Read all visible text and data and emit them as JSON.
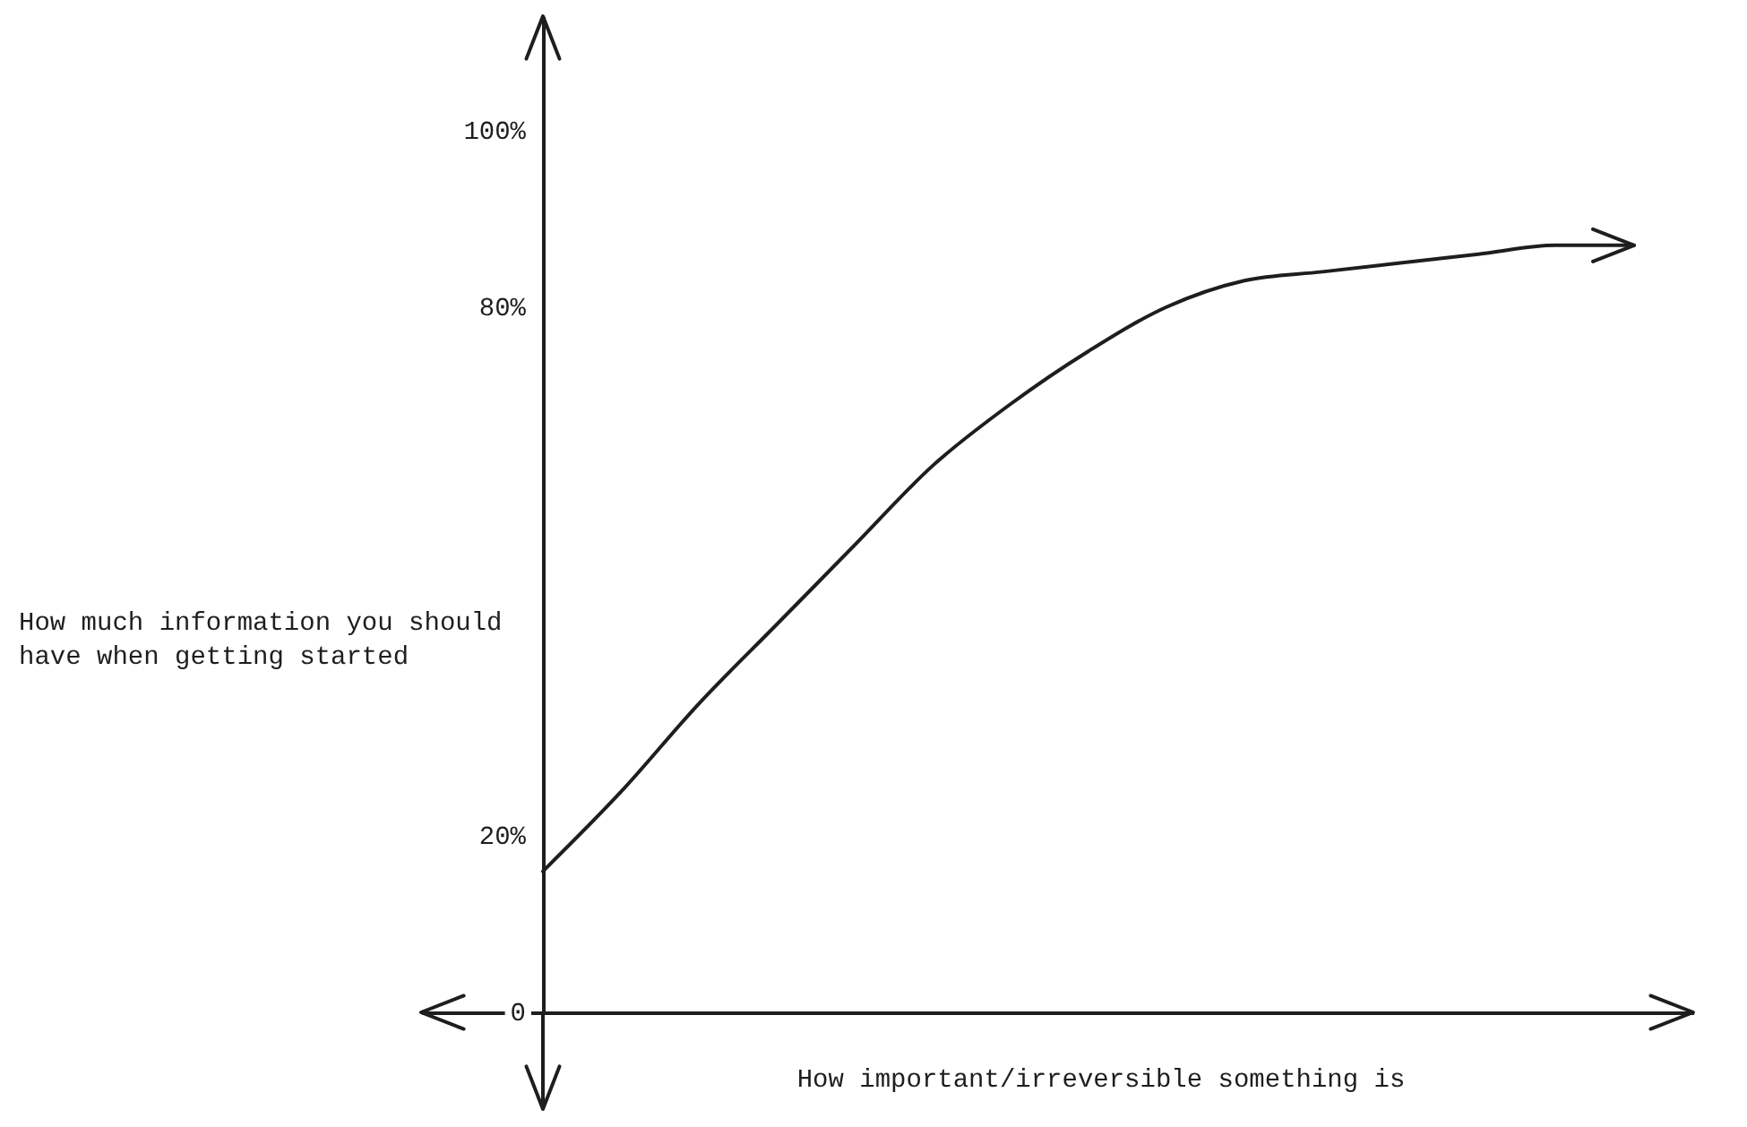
{
  "chart_data": {
    "type": "line",
    "xlabel": "How important/irreversible something is",
    "ylabel": "How much information you should have when getting started",
    "categories": [
      null,
      null,
      null,
      null,
      null,
      null,
      null,
      null,
      null,
      null,
      null,
      null,
      null,
      null,
      null
    ],
    "values": [
      16,
      25,
      35,
      44,
      53,
      62,
      69,
      75,
      80,
      83,
      84,
      85,
      86,
      87,
      87
    ],
    "color": "#1e1e1e",
    "ylim": [
      0,
      113
    ],
    "yticks": [
      0,
      {
        "value": 20,
        "label": "20%"
      },
      {
        "value": 80,
        "label": "80%"
      },
      {
        "value": 100,
        "label": "100%"
      }
    ],
    "grid": false,
    "marker": "none",
    "line_style": "solid"
  }
}
